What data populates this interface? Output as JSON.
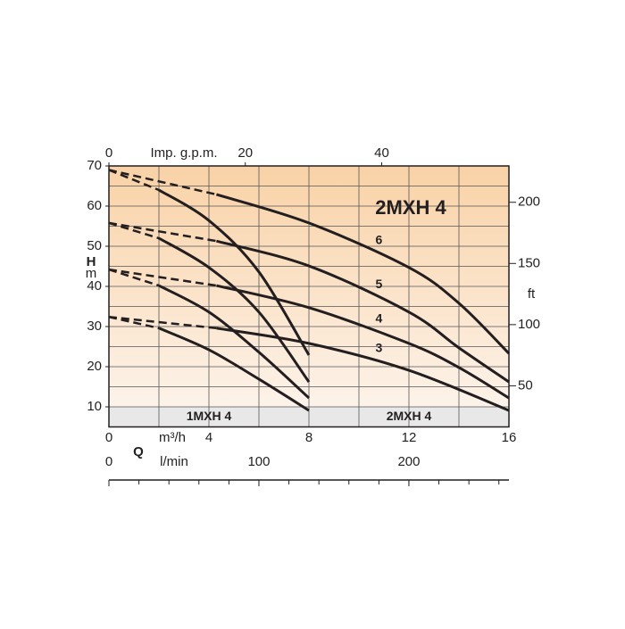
{
  "chart_data": {
    "type": "line",
    "title": "2MXH 4",
    "xlabel": "m³/h",
    "qlabel": "Q",
    "ylabel_h": "H",
    "ylabel_unit": "m",
    "xlim": [
      0,
      16
    ],
    "xticks": [
      0,
      4,
      8,
      12,
      16
    ],
    "grid_x_step": 2,
    "ylim": [
      5,
      70
    ],
    "yticks": [
      10,
      20,
      30,
      40,
      50,
      60,
      70
    ],
    "grid_y_step": 5,
    "x2label": "Imp. g.p.m.",
    "x2lim": [
      0,
      58.66
    ],
    "x2ticks": [
      0,
      20,
      40
    ],
    "y2label": "ft",
    "y2lim": [
      16.4,
      229.7
    ],
    "y2ticks": [
      50,
      100,
      150,
      200
    ],
    "x3label": "l/min",
    "x3lim": [
      0,
      266.7
    ],
    "x3ticks": [
      0,
      100,
      200
    ],
    "x3_minor_step": 20,
    "band_labels": [
      {
        "text": "1MXH 4",
        "x": 4
      },
      {
        "text": "2MXH 4",
        "x": 12
      }
    ],
    "line_color": "#231f20",
    "grid": true,
    "series": [
      {
        "name": "6",
        "x": [
          0,
          4.3,
          8,
          12,
          14,
          16
        ],
        "values": [
          69,
          62.9,
          55.8,
          44.7,
          35.8,
          23.3
        ],
        "dashed_segments": 1
      },
      {
        "name": "5",
        "x": [
          0,
          4.3,
          8,
          12,
          14,
          16
        ],
        "values": [
          55.8,
          51.3,
          45.1,
          33.6,
          24.7,
          16.2
        ],
        "dashed_segments": 1
      },
      {
        "name": "4",
        "x": [
          0,
          4.3,
          8,
          12,
          14,
          16
        ],
        "values": [
          44.2,
          40.2,
          34.7,
          25.8,
          19.8,
          12.2
        ],
        "dashed_segments": 1
      },
      {
        "name": "3",
        "x": [
          0,
          4.3,
          8,
          12,
          16
        ],
        "values": [
          32.4,
          29.6,
          25.8,
          19.1,
          9.1
        ],
        "dashed_segments": 1
      },
      {
        "x": [
          0,
          2,
          4,
          6,
          8
        ],
        "values": [
          69,
          64,
          56.4,
          43.6,
          22.9
        ],
        "dashed_segments": 1
      },
      {
        "x": [
          0,
          2,
          4,
          6,
          8
        ],
        "values": [
          55.8,
          52,
          44.7,
          33.6,
          16.2
        ],
        "dashed_segments": 1
      },
      {
        "x": [
          0,
          2,
          4,
          6,
          8
        ],
        "values": [
          44.2,
          40.2,
          33.6,
          23.6,
          12.2
        ],
        "dashed_segments": 1
      },
      {
        "x": [
          0,
          2,
          4,
          6,
          8
        ],
        "values": [
          32.4,
          29.6,
          24.2,
          16.9,
          9.1
        ],
        "dashed_segments": 1
      }
    ]
  }
}
